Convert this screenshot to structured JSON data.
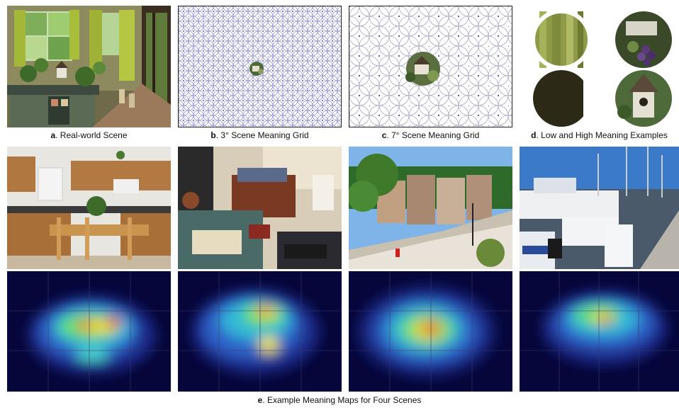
{
  "figure": {
    "captions": {
      "a": {
        "letter": "a",
        "text": ". Real-world Scene"
      },
      "b": {
        "letter": "b",
        "text": ". 3° Scene Meaning Grid"
      },
      "c": {
        "letter": "c",
        "text": ". 7° Scene Meaning Grid"
      },
      "d": {
        "letter": "d",
        "text": ". Low and High Meaning Examples"
      },
      "e": {
        "letter": "e",
        "text": ". Example Meaning Maps for Four Scenes"
      }
    },
    "scenes": [
      {
        "name": "kitchen scene photograph"
      },
      {
        "name": "cluttered bedroom scene photograph"
      },
      {
        "name": "townhouse street scene photograph"
      },
      {
        "name": "marina boats scene photograph"
      }
    ],
    "patches": [
      {
        "name": "low-meaning-patch-bamboo"
      },
      {
        "name": "high-meaning-patch-grapes"
      },
      {
        "name": "low-meaning-patch-dark"
      },
      {
        "name": "high-meaning-patch-birdhouse"
      }
    ],
    "colors": {
      "heatmap_background": "#06063a",
      "grid_line": "#4a4acc",
      "grid_dot": "#2020b0"
    }
  }
}
